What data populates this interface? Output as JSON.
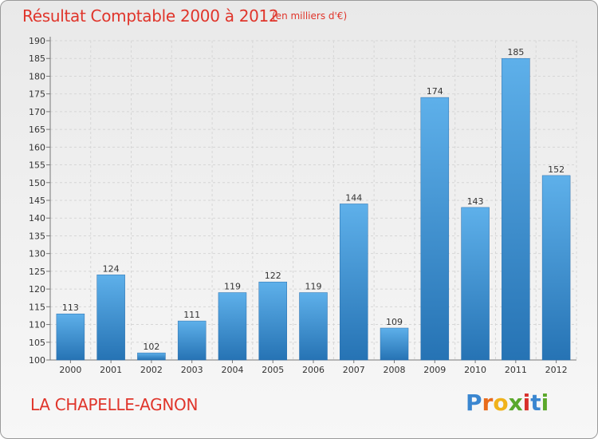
{
  "chart_data": {
    "type": "bar",
    "title": "Résultat Comptable 2000 à 2012",
    "subtitle": "(en milliers d'€)",
    "categories": [
      "2000",
      "2001",
      "2002",
      "2003",
      "2004",
      "2005",
      "2006",
      "2007",
      "2008",
      "2009",
      "2010",
      "2011",
      "2012"
    ],
    "values": [
      113,
      124,
      102,
      111,
      119,
      122,
      119,
      144,
      109,
      174,
      143,
      185,
      152
    ],
    "ylim": [
      100,
      190
    ],
    "yticks": [
      100,
      105,
      110,
      115,
      120,
      125,
      130,
      135,
      140,
      145,
      150,
      155,
      160,
      165,
      170,
      175,
      180,
      185,
      190
    ],
    "xlabel": "",
    "ylabel": "",
    "grid": true,
    "bar_color": "#3e8fd5"
  },
  "commune": "LA CHAPELLE-AGNON",
  "brand": {
    "letters": [
      "P",
      "r",
      "o",
      "x",
      "i",
      "t",
      "i"
    ],
    "colors": [
      "#3a86d0",
      "#e86a1a",
      "#f0b21a",
      "#5aa82b",
      "#d8302c",
      "#3a86d0",
      "#5aa82b"
    ]
  }
}
